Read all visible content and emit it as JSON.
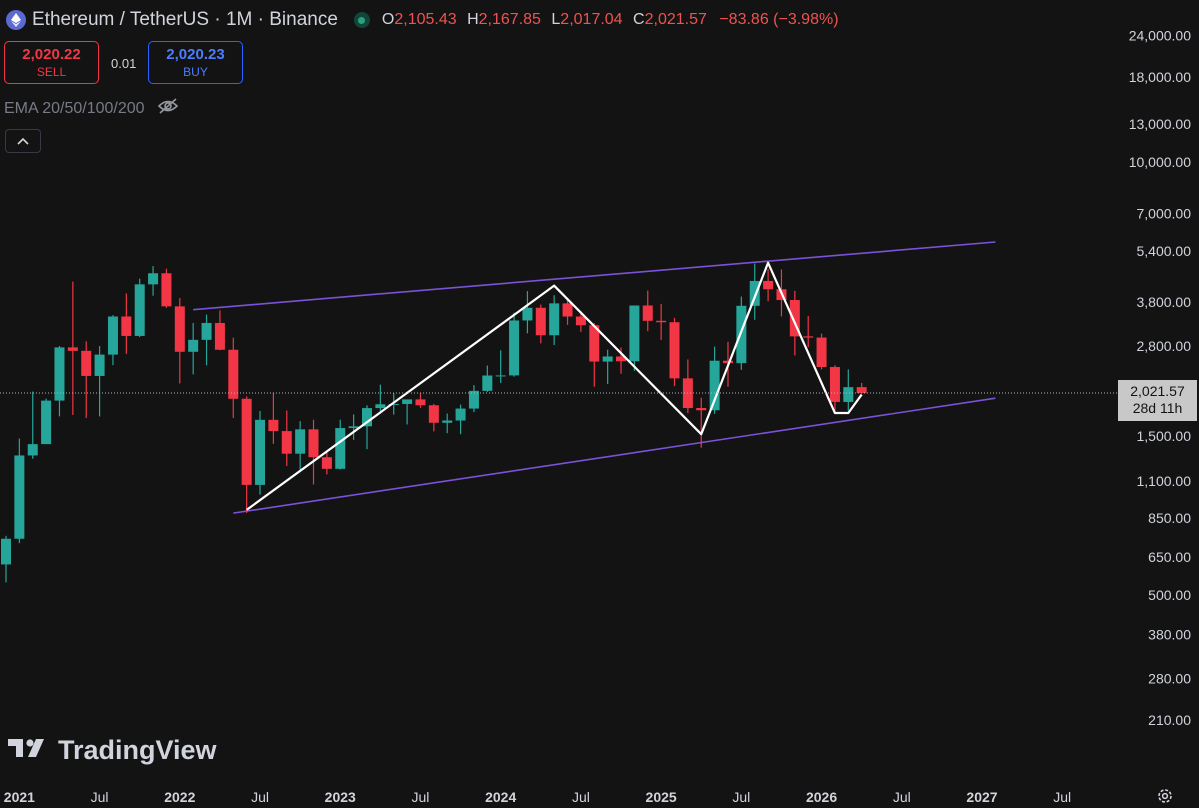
{
  "header": {
    "symbol": "Ethereum / TetherUS · 1M · Binance",
    "open_label": "O",
    "open": "2,105.43",
    "high_label": "H",
    "high": "2,167.85",
    "low_label": "L",
    "low": "2,017.04",
    "close_label": "C",
    "close": "2,021.57",
    "change": "−83.86 (−3.98%)"
  },
  "trade": {
    "sell_price": "2,020.22",
    "sell_label": "SELL",
    "spread": "0.01",
    "buy_price": "2,020.23",
    "buy_label": "BUY"
  },
  "indicator": {
    "label": "EMA 20/50/100/200"
  },
  "branding": {
    "logo_text": "TradingView"
  },
  "last_price": {
    "price": "2,021.57",
    "countdown": "28d 11h"
  },
  "colors": {
    "background": "#131313",
    "up": "#26a69a",
    "down": "#f23645",
    "channel": "#7b52d9",
    "pattern": "#ffffff",
    "text": "#d1d4dc"
  },
  "icons": {
    "logo": "ethereum-icon",
    "status": "live-dot-icon",
    "visibility": "eye-off-icon",
    "collapse": "chevron-up-icon",
    "settings": "gear-icon"
  },
  "chart_data": {
    "type": "candlestick",
    "title": "Ethereum / TetherUS · 1M · Binance",
    "y_scale": "log",
    "ylim": [
      180,
      25000
    ],
    "y_ticks": [
      210,
      280,
      380,
      500,
      650,
      850,
      1100,
      1500,
      2800,
      3800,
      5400,
      7000,
      10000,
      13000,
      18000,
      24000
    ],
    "y_tick_labels": [
      "210.00",
      "280.00",
      "380.00",
      "500.00",
      "650.00",
      "850.00",
      "1,100.00",
      "1,500.00",
      "2,800.00",
      "3,800.00",
      "5,400.00",
      "7,000.00",
      "10,000.00",
      "13,000.00",
      "18,000.00",
      "24,000.00"
    ],
    "x_ticks": [
      "2021-01",
      "2021-07",
      "2022-01",
      "2022-07",
      "2023-01",
      "2023-07",
      "2024-01",
      "2024-07",
      "2025-01",
      "2025-07",
      "2026-01",
      "2026-07",
      "2027-01",
      "2027-07"
    ],
    "x_tick_labels": [
      "2021",
      "Jul",
      "2022",
      "Jul",
      "2023",
      "Jul",
      "2024",
      "Jul",
      "2025",
      "Jul",
      "2026",
      "Jul",
      "2027",
      "Jul"
    ],
    "xlim": [
      "2020-12",
      "2027-09"
    ],
    "candles": [
      {
        "date": "2020-12",
        "o": 617,
        "h": 752,
        "l": 545,
        "c": 737
      },
      {
        "date": "2021-01",
        "o": 737,
        "h": 1475,
        "l": 715,
        "c": 1312
      },
      {
        "date": "2021-02",
        "o": 1312,
        "h": 2042,
        "l": 1282,
        "c": 1419
      },
      {
        "date": "2021-03",
        "o": 1419,
        "h": 1944,
        "l": 1422,
        "c": 1918
      },
      {
        "date": "2021-04",
        "o": 1918,
        "h": 2798,
        "l": 1720,
        "c": 2772
      },
      {
        "date": "2021-05",
        "o": 2772,
        "h": 4372,
        "l": 1736,
        "c": 2707
      },
      {
        "date": "2021-06",
        "o": 2707,
        "h": 2891,
        "l": 1700,
        "c": 2275
      },
      {
        "date": "2021-07",
        "o": 2275,
        "h": 2797,
        "l": 1719,
        "c": 2637
      },
      {
        "date": "2021-08",
        "o": 2637,
        "h": 3466,
        "l": 2451,
        "c": 3433
      },
      {
        "date": "2021-09",
        "o": 3433,
        "h": 4027,
        "l": 2651,
        "c": 3001
      },
      {
        "date": "2021-10",
        "o": 3001,
        "h": 4460,
        "l": 2977,
        "c": 4289
      },
      {
        "date": "2021-11",
        "o": 4289,
        "h": 4868,
        "l": 3964,
        "c": 4631
      },
      {
        "date": "2021-12",
        "o": 4631,
        "h": 4779,
        "l": 3644,
        "c": 3683
      },
      {
        "date": "2022-01",
        "o": 3683,
        "h": 3900,
        "l": 2160,
        "c": 2689
      },
      {
        "date": "2022-02",
        "o": 2689,
        "h": 3283,
        "l": 2300,
        "c": 2921
      },
      {
        "date": "2022-03",
        "o": 2921,
        "h": 3479,
        "l": 2450,
        "c": 3283
      },
      {
        "date": "2022-04",
        "o": 3283,
        "h": 3582,
        "l": 2718,
        "c": 2727
      },
      {
        "date": "2022-05",
        "o": 2727,
        "h": 2965,
        "l": 1700,
        "c": 1942
      },
      {
        "date": "2022-06",
        "o": 1942,
        "h": 1975,
        "l": 881,
        "c": 1070
      },
      {
        "date": "2022-07",
        "o": 1070,
        "h": 1785,
        "l": 1000,
        "c": 1679
      },
      {
        "date": "2022-08",
        "o": 1679,
        "h": 2030,
        "l": 1422,
        "c": 1553
      },
      {
        "date": "2022-09",
        "o": 1553,
        "h": 1790,
        "l": 1220,
        "c": 1328
      },
      {
        "date": "2022-10",
        "o": 1328,
        "h": 1664,
        "l": 1190,
        "c": 1572
      },
      {
        "date": "2022-11",
        "o": 1572,
        "h": 1680,
        "l": 1073,
        "c": 1296
      },
      {
        "date": "2022-12",
        "o": 1296,
        "h": 1352,
        "l": 1150,
        "c": 1196
      },
      {
        "date": "2023-01",
        "o": 1196,
        "h": 1680,
        "l": 1190,
        "c": 1586
      },
      {
        "date": "2023-02",
        "o": 1586,
        "h": 1743,
        "l": 1461,
        "c": 1605
      },
      {
        "date": "2023-03",
        "o": 1605,
        "h": 1857,
        "l": 1370,
        "c": 1821
      },
      {
        "date": "2023-04",
        "o": 1821,
        "h": 2141,
        "l": 1785,
        "c": 1870
      },
      {
        "date": "2023-05",
        "o": 1870,
        "h": 2018,
        "l": 1741,
        "c": 1874
      },
      {
        "date": "2023-06",
        "o": 1874,
        "h": 1930,
        "l": 1626,
        "c": 1934
      },
      {
        "date": "2023-07",
        "o": 1934,
        "h": 2029,
        "l": 1826,
        "c": 1857
      },
      {
        "date": "2023-08",
        "o": 1857,
        "h": 1875,
        "l": 1550,
        "c": 1645
      },
      {
        "date": "2023-09",
        "o": 1645,
        "h": 1754,
        "l": 1531,
        "c": 1671
      },
      {
        "date": "2023-10",
        "o": 1671,
        "h": 1866,
        "l": 1520,
        "c": 1815
      },
      {
        "date": "2023-11",
        "o": 1815,
        "h": 2135,
        "l": 1771,
        "c": 2052
      },
      {
        "date": "2023-12",
        "o": 2052,
        "h": 2445,
        "l": 2037,
        "c": 2282
      },
      {
        "date": "2024-01",
        "o": 2282,
        "h": 2717,
        "l": 2166,
        "c": 2283
      },
      {
        "date": "2024-02",
        "o": 2283,
        "h": 3523,
        "l": 2263,
        "c": 3340
      },
      {
        "date": "2024-03",
        "o": 3340,
        "h": 4093,
        "l": 3056,
        "c": 3647
      },
      {
        "date": "2024-04",
        "o": 3647,
        "h": 3730,
        "l": 2850,
        "c": 3015
      },
      {
        "date": "2024-05",
        "o": 3015,
        "h": 3977,
        "l": 2817,
        "c": 3760
      },
      {
        "date": "2024-06",
        "o": 3760,
        "h": 3887,
        "l": 3240,
        "c": 3433
      },
      {
        "date": "2024-07",
        "o": 3433,
        "h": 3563,
        "l": 3087,
        "c": 3232
      },
      {
        "date": "2024-08",
        "o": 3232,
        "h": 3278,
        "l": 2111,
        "c": 2513
      },
      {
        "date": "2024-09",
        "o": 2513,
        "h": 2728,
        "l": 2150,
        "c": 2603
      },
      {
        "date": "2024-10",
        "o": 2603,
        "h": 2770,
        "l": 2310,
        "c": 2518
      },
      {
        "date": "2024-11",
        "o": 2518,
        "h": 3682,
        "l": 2357,
        "c": 3705
      },
      {
        "date": "2024-12",
        "o": 3705,
        "h": 4107,
        "l": 3099,
        "c": 3332
      },
      {
        "date": "2025-01",
        "o": 3332,
        "h": 3745,
        "l": 2920,
        "c": 3300
      },
      {
        "date": "2025-02",
        "o": 3300,
        "h": 3400,
        "l": 2120,
        "c": 2237
      },
      {
        "date": "2025-03",
        "o": 2237,
        "h": 2550,
        "l": 1760,
        "c": 1822
      },
      {
        "date": "2025-04",
        "o": 1822,
        "h": 1957,
        "l": 1385,
        "c": 1794
      },
      {
        "date": "2025-05",
        "o": 1794,
        "h": 2787,
        "l": 1750,
        "c": 2528
      },
      {
        "date": "2025-06",
        "o": 2528,
        "h": 2880,
        "l": 2111,
        "c": 2486
      },
      {
        "date": "2025-07",
        "o": 2486,
        "h": 3941,
        "l": 2373,
        "c": 3697
      },
      {
        "date": "2025-08",
        "o": 3697,
        "h": 4955,
        "l": 3355,
        "c": 4391
      },
      {
        "date": "2025-09",
        "o": 4391,
        "h": 4768,
        "l": 3815,
        "c": 4145
      },
      {
        "date": "2025-10",
        "o": 4145,
        "h": 4755,
        "l": 3435,
        "c": 3848
      },
      {
        "date": "2025-11",
        "o": 3848,
        "h": 4100,
        "l": 2623,
        "c": 2992
      },
      {
        "date": "2025-12",
        "o": 2992,
        "h": 3447,
        "l": 2775,
        "c": 2967
      },
      {
        "date": "2026-01",
        "o": 2967,
        "h": 3050,
        "l": 2380,
        "c": 2420
      },
      {
        "date": "2026-02",
        "o": 2420,
        "h": 2450,
        "l": 1750,
        "c": 1900
      },
      {
        "date": "2026-03",
        "o": 1900,
        "h": 2380,
        "l": 1790,
        "c": 2105
      },
      {
        "date": "2026-04",
        "o": 2105.43,
        "h": 2167.85,
        "l": 2017.04,
        "c": 2021.57
      }
    ],
    "trendlines": [
      {
        "name": "upper-channel",
        "points": [
          [
            "2022-02",
            3600
          ],
          [
            "2027-02",
            5750
          ]
        ]
      },
      {
        "name": "lower-channel",
        "points": [
          [
            "2022-05",
            880
          ],
          [
            "2027-02",
            1950
          ]
        ]
      }
    ],
    "pattern": [
      [
        "2022-06",
        900
      ],
      [
        "2024-05",
        4250
      ],
      [
        "2025-04",
        1520
      ],
      [
        "2025-09",
        4980
      ],
      [
        "2026-02",
        1760
      ],
      [
        "2026-03",
        1760
      ],
      [
        "2026-04",
        2000
      ]
    ],
    "last_price_line": 2021.57
  }
}
